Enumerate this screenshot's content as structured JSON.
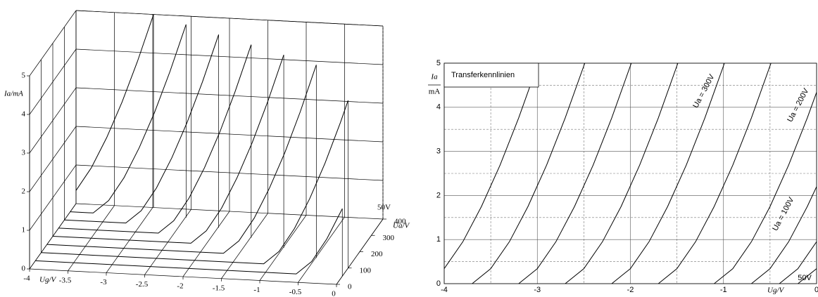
{
  "chart_data": [
    {
      "type": "line3d",
      "color": "#000000",
      "xlabel": "Ug/V",
      "ylabel": "Ia/mA",
      "zlabel": "Ua/V",
      "annotation": "50V",
      "xlim": [
        -4,
        0
      ],
      "xticks": [
        -4,
        -3.5,
        -3,
        -2.5,
        -2,
        -1.5,
        -1,
        -0.5,
        0
      ],
      "ylim": [
        0,
        5
      ],
      "yticks": [
        0,
        1,
        2,
        3,
        4,
        5
      ],
      "zlim": [
        0,
        400
      ],
      "zticks": [
        0,
        100,
        200,
        300,
        400
      ],
      "series": [
        {
          "z": 400,
          "x": [
            -4,
            -3.8,
            -3.6,
            -3.4,
            -3.2,
            -2.99
          ],
          "values": [
            0.34,
            0.95,
            1.75,
            2.69,
            3.76,
            5
          ]
        },
        {
          "z": 350,
          "x": [
            -4,
            -3.7,
            -3.5,
            -3.3,
            -3.1,
            -2.9,
            -2.7,
            -2.49
          ],
          "values": [
            0,
            0,
            0.34,
            0.95,
            1.75,
            2.69,
            3.76,
            5
          ]
        },
        {
          "z": 300,
          "x": [
            -4,
            -3.2,
            -3,
            -2.8,
            -2.6,
            -2.4,
            -2.2,
            -1.99
          ],
          "values": [
            0,
            0,
            0.34,
            0.95,
            1.75,
            2.69,
            3.76,
            5
          ]
        },
        {
          "z": 250,
          "x": [
            -4,
            -2.7,
            -2.5,
            -2.3,
            -2.1,
            -1.9,
            -1.7,
            -1.49
          ],
          "values": [
            0,
            0,
            0.34,
            0.95,
            1.75,
            2.69,
            3.76,
            5
          ]
        },
        {
          "z": 200,
          "x": [
            -4,
            -2.2,
            -2,
            -1.8,
            -1.6,
            -1.4,
            -1.2,
            -0.99
          ],
          "values": [
            0,
            0,
            0.34,
            0.95,
            1.75,
            2.69,
            3.76,
            5
          ]
        },
        {
          "z": 150,
          "x": [
            -4,
            -1.7,
            -1.5,
            -1.3,
            -1.1,
            -0.9,
            -0.7,
            -0.49
          ],
          "values": [
            0,
            0,
            0.34,
            0.95,
            1.75,
            2.69,
            3.76,
            5
          ]
        },
        {
          "z": 100,
          "x": [
            -4,
            -1.1,
            -0.9,
            -0.7,
            -0.5,
            -0.3,
            -0.1,
            0
          ],
          "values": [
            0,
            0,
            0.34,
            0.95,
            1.75,
            2.69,
            3.76,
            4.34
          ]
        },
        {
          "z": 50,
          "x": [
            -4,
            -0.6,
            -0.4,
            -0.2,
            0
          ],
          "values": [
            0,
            0,
            0.34,
            0.95,
            1.75
          ]
        }
      ]
    },
    {
      "type": "line",
      "color": "#000000",
      "title": "Transferkennlinien",
      "ylabel": "Ia",
      "yunit": "mA",
      "xlabel": "Ug/V",
      "grid": true,
      "xlim": [
        -4,
        0
      ],
      "xticks": [
        -4,
        -3,
        -2,
        -1,
        0
      ],
      "x_minor_ticks": [
        -3.5,
        -2.5,
        -1.5,
        -0.5
      ],
      "ylim": [
        0,
        5
      ],
      "yticks": [
        0,
        1,
        2,
        3,
        4,
        5
      ],
      "y_minor_ticks": [
        0.5,
        1.5,
        2.5,
        3.5,
        4.5
      ],
      "series": [
        {
          "x": [
            -4,
            -3.8,
            -3.6,
            -3.4,
            -3.2,
            -2.99
          ],
          "values": [
            0.34,
            0.95,
            1.75,
            2.69,
            3.76,
            5
          ]
        },
        {
          "x": [
            -3.7,
            -3.5,
            -3.3,
            -3.1,
            -2.9,
            -2.7,
            -2.49
          ],
          "values": [
            0,
            0.34,
            0.95,
            1.75,
            2.69,
            3.76,
            5
          ]
        },
        {
          "x": [
            -3.2,
            -3,
            -2.8,
            -2.6,
            -2.4,
            -2.2,
            -1.99
          ],
          "values": [
            0,
            0.34,
            0.95,
            1.75,
            2.69,
            3.76,
            5
          ]
        },
        {
          "x": [
            -2.7,
            -2.5,
            -2.3,
            -2.1,
            -1.9,
            -1.7,
            -1.49
          ],
          "values": [
            0,
            0.34,
            0.95,
            1.75,
            2.69,
            3.76,
            5
          ]
        },
        {
          "name": "Ua = 300V",
          "x": [
            -2.2,
            -2,
            -1.8,
            -1.6,
            -1.4,
            -1.2,
            -0.99
          ],
          "values": [
            0,
            0.34,
            0.95,
            1.75,
            2.69,
            3.76,
            5
          ]
        },
        {
          "x": [
            -1.7,
            -1.5,
            -1.3,
            -1.1,
            -0.9,
            -0.7,
            -0.49
          ],
          "values": [
            0,
            0.34,
            0.95,
            1.75,
            2.69,
            3.76,
            5
          ]
        },
        {
          "name": "Ua = 200V",
          "x": [
            -1.1,
            -0.9,
            -0.7,
            -0.5,
            -0.3,
            -0.1,
            0
          ],
          "values": [
            0,
            0.34,
            0.95,
            1.75,
            2.69,
            3.76,
            4.34
          ]
        },
        {
          "name": "Ua = 100V",
          "x": [
            -0.7,
            -0.5,
            -0.3,
            -0.1,
            0
          ],
          "values": [
            0,
            0.34,
            0.95,
            1.75,
            2.2
          ]
        },
        {
          "x": [
            -0.4,
            -0.2,
            0
          ],
          "values": [
            0,
            0.34,
            0.95
          ]
        },
        {
          "name": "50V",
          "x": [
            -0.2,
            0
          ],
          "values": [
            0,
            0.34
          ]
        }
      ]
    }
  ]
}
